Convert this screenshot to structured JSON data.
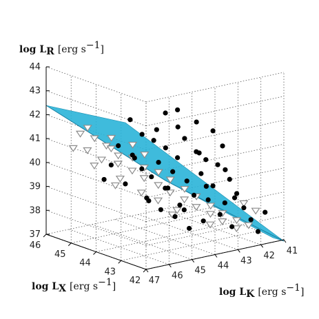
{
  "chart_data": {
    "type": "scatter",
    "projection": "3d",
    "grid": true,
    "axes": {
      "z": {
        "label_main": "log L",
        "label_sub": "R",
        "label_unit": "[erg s",
        "label_exp": "−1",
        "label_close": "]",
        "range": [
          37,
          44
        ],
        "ticks": [
          "44",
          "43",
          "42",
          "41",
          "40",
          "39",
          "38",
          "37"
        ]
      },
      "x": {
        "label_main": "log L",
        "label_sub": "X",
        "label_unit": "[erg s",
        "label_exp": "−1",
        "label_close": "]",
        "range": [
          42,
          46
        ],
        "ticks": [
          "46",
          "45",
          "44",
          "43",
          "42"
        ]
      },
      "y": {
        "label_main": "log L",
        "label_sub": "K",
        "label_unit": "[erg s",
        "label_exp": "−1",
        "label_close": "]",
        "range": [
          41,
          47
        ],
        "ticks": [
          "47",
          "46",
          "45",
          "44",
          "43",
          "42",
          "41"
        ]
      }
    },
    "fit_plane_color": "#2ab4d8",
    "series": [
      {
        "marker": "filled-circle",
        "color": "#000000",
        "points": [
          {
            "lx": 43.8,
            "lk": 44.2,
            "lr": 42.3
          },
          {
            "lx": 43.5,
            "lk": 44.0,
            "lr": 42.5
          },
          {
            "lx": 43.2,
            "lk": 43.5,
            "lr": 42.0
          },
          {
            "lx": 43.6,
            "lk": 44.8,
            "lr": 41.8
          },
          {
            "lx": 43.0,
            "lk": 43.0,
            "lr": 41.6
          },
          {
            "lx": 44.0,
            "lk": 45.0,
            "lr": 41.5
          },
          {
            "lx": 43.9,
            "lk": 44.6,
            "lr": 41.2
          },
          {
            "lx": 43.4,
            "lk": 43.8,
            "lr": 41.3
          },
          {
            "lx": 42.8,
            "lk": 42.8,
            "lr": 41.0
          },
          {
            "lx": 43.7,
            "lk": 44.3,
            "lr": 40.9
          },
          {
            "lx": 43.3,
            "lk": 43.4,
            "lr": 40.7
          },
          {
            "lx": 44.2,
            "lk": 45.2,
            "lr": 40.6
          },
          {
            "lx": 43.5,
            "lk": 44.0,
            "lr": 40.5
          },
          {
            "lx": 43.1,
            "lk": 43.2,
            "lr": 40.4
          },
          {
            "lx": 43.8,
            "lk": 44.5,
            "lr": 40.3
          },
          {
            "lx": 42.9,
            "lk": 42.9,
            "lr": 40.2
          },
          {
            "lx": 44.1,
            "lk": 44.9,
            "lr": 40.0
          },
          {
            "lx": 43.6,
            "lk": 44.1,
            "lr": 39.9
          },
          {
            "lx": 43.2,
            "lk": 43.3,
            "lr": 39.8
          },
          {
            "lx": 43.9,
            "lk": 44.7,
            "lr": 39.7
          },
          {
            "lx": 42.7,
            "lk": 42.6,
            "lr": 39.6
          },
          {
            "lx": 43.4,
            "lk": 43.7,
            "lr": 39.5
          },
          {
            "lx": 44.3,
            "lk": 45.4,
            "lr": 39.4
          },
          {
            "lx": 43.0,
            "lk": 43.0,
            "lr": 39.3
          },
          {
            "lx": 43.7,
            "lk": 44.2,
            "lr": 39.2
          },
          {
            "lx": 42.6,
            "lk": 42.4,
            "lr": 39.0
          },
          {
            "lx": 43.3,
            "lk": 43.5,
            "lr": 38.9
          },
          {
            "lx": 44.0,
            "lk": 44.8,
            "lr": 38.8
          },
          {
            "lx": 43.1,
            "lk": 43.1,
            "lr": 38.7
          },
          {
            "lx": 42.8,
            "lk": 42.7,
            "lr": 38.6
          },
          {
            "lx": 43.5,
            "lk": 43.9,
            "lr": 38.5
          },
          {
            "lx": 42.5,
            "lk": 42.2,
            "lr": 38.4
          },
          {
            "lx": 43.8,
            "lk": 44.4,
            "lr": 38.3
          },
          {
            "lx": 42.9,
            "lk": 42.8,
            "lr": 38.1
          },
          {
            "lx": 43.6,
            "lk": 44.0,
            "lr": 38.0
          },
          {
            "lx": 42.4,
            "lk": 42.0,
            "lr": 37.9
          },
          {
            "lx": 43.2,
            "lk": 43.2,
            "lr": 37.8
          },
          {
            "lx": 42.7,
            "lk": 42.5,
            "lr": 37.6
          },
          {
            "lx": 43.4,
            "lk": 43.6,
            "lr": 37.5
          },
          {
            "lx": 42.3,
            "lk": 41.8,
            "lr": 37.4
          },
          {
            "lx": 44.4,
            "lk": 45.6,
            "lr": 41.0
          },
          {
            "lx": 44.5,
            "lk": 45.8,
            "lr": 40.2
          },
          {
            "lx": 44.6,
            "lk": 46.0,
            "lr": 39.6
          },
          {
            "lx": 44.2,
            "lk": 45.3,
            "lr": 42.1
          },
          {
            "lx": 43.0,
            "lk": 43.6,
            "lr": 40.8
          },
          {
            "lx": 42.6,
            "lk": 42.9,
            "lr": 40.1
          },
          {
            "lx": 43.9,
            "lk": 44.1,
            "lr": 39.1
          },
          {
            "lx": 44.1,
            "lk": 44.6,
            "lr": 38.6
          },
          {
            "lx": 42.5,
            "lk": 42.6,
            "lr": 38.9
          },
          {
            "lx": 43.3,
            "lk": 44.2,
            "lr": 41.9
          },
          {
            "lx": 42.9,
            "lk": 43.4,
            "lr": 39.4
          },
          {
            "lx": 44.3,
            "lk": 45.0,
            "lr": 40.4
          },
          {
            "lx": 43.6,
            "lk": 43.6,
            "lr": 38.2
          },
          {
            "lx": 42.2,
            "lk": 41.6,
            "lr": 38.2
          }
        ]
      },
      {
        "marker": "open-triangle-down",
        "color": "#8c8c8c",
        "points": [
          {
            "lx": 44.8,
            "lk": 46.2,
            "lr": 41.3
          },
          {
            "lx": 44.6,
            "lk": 45.9,
            "lr": 41.0
          },
          {
            "lx": 44.9,
            "lk": 46.4,
            "lr": 40.8
          },
          {
            "lx": 44.4,
            "lk": 45.6,
            "lr": 40.6
          },
          {
            "lx": 44.7,
            "lk": 46.0,
            "lr": 40.4
          },
          {
            "lx": 44.2,
            "lk": 45.2,
            "lr": 40.5
          },
          {
            "lx": 44.5,
            "lk": 45.5,
            "lr": 40.2
          },
          {
            "lx": 44.0,
            "lk": 44.9,
            "lr": 40.1
          },
          {
            "lx": 44.3,
            "lk": 45.1,
            "lr": 39.9
          },
          {
            "lx": 43.8,
            "lk": 44.5,
            "lr": 39.9
          },
          {
            "lx": 44.1,
            "lk": 44.8,
            "lr": 39.6
          },
          {
            "lx": 43.6,
            "lk": 44.2,
            "lr": 39.6
          },
          {
            "lx": 43.9,
            "lk": 44.4,
            "lr": 39.3
          },
          {
            "lx": 43.4,
            "lk": 43.8,
            "lr": 39.2
          },
          {
            "lx": 43.7,
            "lk": 44.1,
            "lr": 39.0
          },
          {
            "lx": 43.2,
            "lk": 43.5,
            "lr": 38.9
          },
          {
            "lx": 43.5,
            "lk": 43.7,
            "lr": 38.7
          },
          {
            "lx": 43.0,
            "lk": 43.1,
            "lr": 38.5
          },
          {
            "lx": 43.3,
            "lk": 43.4,
            "lr": 38.4
          },
          {
            "lx": 42.8,
            "lk": 42.8,
            "lr": 38.2
          },
          {
            "lx": 43.1,
            "lk": 43.0,
            "lr": 38.1
          },
          {
            "lx": 42.6,
            "lk": 42.4,
            "lr": 37.9
          },
          {
            "lx": 42.9,
            "lk": 42.7,
            "lr": 37.8
          },
          {
            "lx": 42.4,
            "lk": 42.1,
            "lr": 37.7
          },
          {
            "lx": 45.0,
            "lk": 46.6,
            "lr": 41.5
          },
          {
            "lx": 44.9,
            "lk": 46.1,
            "lr": 40.1
          },
          {
            "lx": 44.6,
            "lk": 45.3,
            "lr": 39.5
          },
          {
            "lx": 44.3,
            "lk": 44.7,
            "lr": 38.9
          },
          {
            "lx": 44.0,
            "lk": 44.3,
            "lr": 38.6
          },
          {
            "lx": 43.7,
            "lk": 43.8,
            "lr": 38.2
          },
          {
            "lx": 45.1,
            "lk": 46.8,
            "lr": 40.9
          },
          {
            "lx": 44.8,
            "lk": 46.5,
            "lr": 41.8
          },
          {
            "lx": 42.3,
            "lk": 41.9,
            "lr": 38.3
          },
          {
            "lx": 42.5,
            "lk": 42.2,
            "lr": 38.6
          },
          {
            "lx": 43.9,
            "lk": 45.0,
            "lr": 40.7
          },
          {
            "lx": 44.5,
            "lk": 45.8,
            "lr": 40.9
          },
          {
            "lx": 44.7,
            "lk": 45.4,
            "lr": 39.2
          },
          {
            "lx": 43.2,
            "lk": 42.9,
            "lr": 37.6
          },
          {
            "lx": 44.1,
            "lk": 45.3,
            "lr": 41.1
          },
          {
            "lx": 42.7,
            "lk": 42.3,
            "lr": 37.5
          },
          {
            "lx": 43.8,
            "lk": 43.9,
            "lr": 38.0
          },
          {
            "lx": 44.4,
            "lk": 45.9,
            "lr": 41.4
          }
        ]
      }
    ]
  }
}
